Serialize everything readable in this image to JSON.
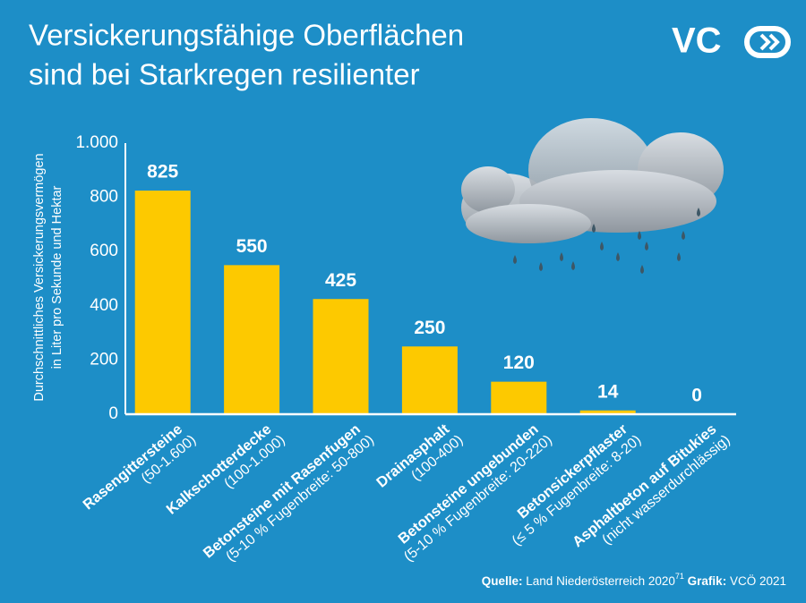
{
  "chart_data": {
    "type": "bar",
    "title": [
      "Versickerungsfähige Oberflächen",
      "sind bei Starkregen resilienter"
    ],
    "logo": "VC",
    "y_axis_label": [
      "Durchschnittliches Versickerungsvermögen",
      "in Liter pro Sekunde und Hektar"
    ],
    "categories": [
      "Rasengittersteine",
      "Kalkschotterdecke",
      "Betonsteine mit Rasenfugen",
      "Drainasphalt",
      "Betonsteine ungebunden",
      "Betonsickerpflaster",
      "Asphaltbeton auf Bitukies"
    ],
    "category_notes": [
      "(50-1.600)",
      "(100-1.000)",
      "(5-10 % Fugenbreite: 50-800)",
      "(100-400)",
      "(5-10 % Fugenbreite: 20-220)",
      "(≤ 5 % Fugenbreite: 8-20)",
      "(nicht wasserdurchlässig)"
    ],
    "values": [
      825,
      550,
      425,
      250,
      120,
      14,
      0
    ],
    "color": "#fdc900",
    "ylim": [
      0,
      1000
    ],
    "yticks": [
      0,
      200,
      400,
      600,
      800,
      {
        "value": 1000,
        "label": "1.000"
      }
    ],
    "source": {
      "label": "Quelle:",
      "text": "Land Niederösterreich 2020",
      "footnote": "71",
      "graphic_label": "Grafik:",
      "graphic_text": "VCÖ 2021"
    }
  }
}
